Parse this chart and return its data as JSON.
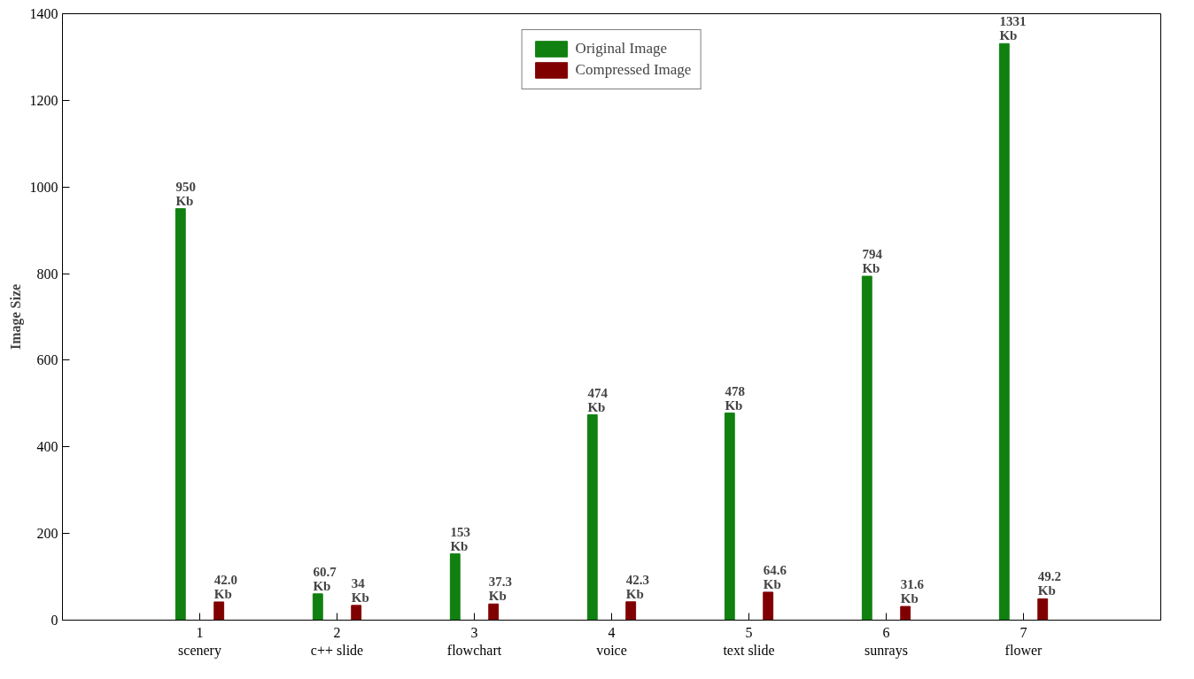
{
  "chart_data": {
    "type": "bar",
    "ylabel": "Image Size",
    "categories": [
      "1\nscenery",
      "2\nc++ slide",
      "3\nflowchart",
      "4\nvoice",
      "5\ntext slide",
      "6\nsunrays",
      "7\nflower"
    ],
    "series": [
      {
        "name": "Original Image",
        "color": "#108010",
        "values": [
          950,
          60.7,
          153,
          474,
          478,
          794,
          1331
        ],
        "value_labels": [
          "950\nKb",
          "60.7\nKb",
          "153\nKb",
          "474\nKb",
          "478\nKb",
          "794\nKb",
          "1331\nKb"
        ]
      },
      {
        "name": "Compressed Image",
        "color": "#800000",
        "values": [
          42.0,
          34,
          37.3,
          42.3,
          64.6,
          31.6,
          49.2
        ],
        "value_labels": [
          "42.0\nKb",
          "34\nKb",
          "37.3\nKb",
          "42.3\nKb",
          "64.6\nKb",
          "31.6\nKb",
          "49.2\nKb"
        ]
      }
    ],
    "ylim": [
      0,
      1400
    ],
    "yticks": [
      0,
      200,
      400,
      600,
      800,
      1000,
      1200,
      1400
    ],
    "grid": false,
    "legend": "top"
  }
}
